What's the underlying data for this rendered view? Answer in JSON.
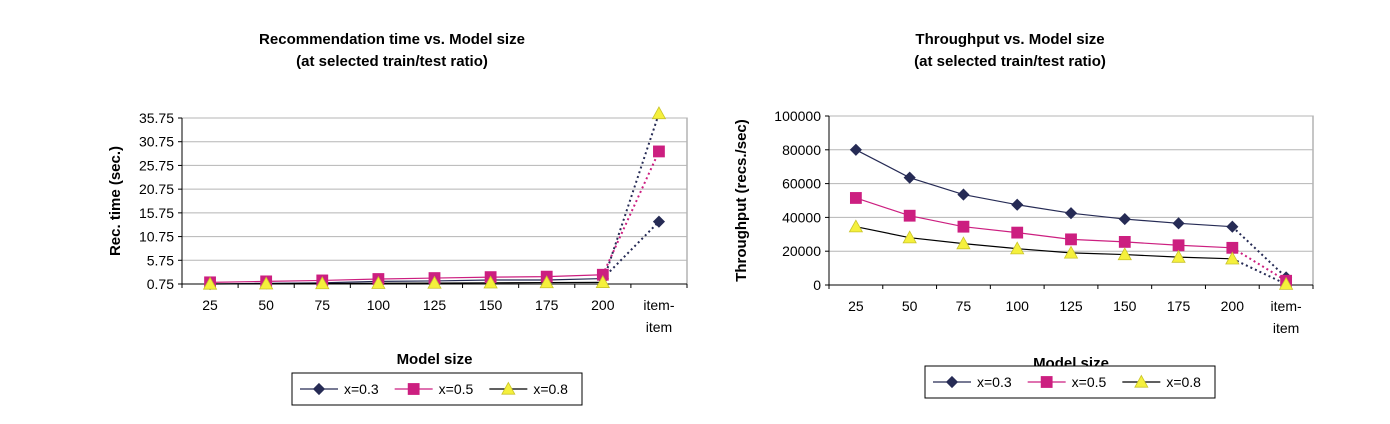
{
  "chart_data": [
    {
      "type": "line",
      "title": "Recommendation time vs. Model size",
      "subtitle": "(at selected train/test ratio)",
      "xlabel": "Model size",
      "ylabel": "Rec. time (sec.)",
      "categories": [
        "25",
        "50",
        "75",
        "100",
        "125",
        "150",
        "175",
        "200",
        "item-item"
      ],
      "yticks": [
        "0.75",
        "5.75",
        "10.75",
        "15.75",
        "20.75",
        "25.75",
        "30.75",
        "35.75"
      ],
      "ylim": [
        0.75,
        35.75
      ],
      "grid": true,
      "legend_position": "bottom",
      "series": [
        {
          "name": "x=0.3",
          "marker": "diamond",
          "color": "#262b55",
          "values": [
            0.75,
            0.9,
            1.0,
            1.3,
            1.4,
            1.6,
            1.6,
            1.9,
            13.9
          ]
        },
        {
          "name": "x=0.5",
          "marker": "square",
          "color": "#cc1f80",
          "values": [
            1.1,
            1.3,
            1.5,
            1.8,
            2.0,
            2.2,
            2.3,
            2.7,
            28.7
          ]
        },
        {
          "name": "x=0.8",
          "marker": "triangle",
          "color": "#f5f03c",
          "values": [
            0.75,
            0.8,
            0.85,
            0.9,
            0.95,
            1.0,
            1.05,
            1.1,
            36.7
          ]
        }
      ]
    },
    {
      "type": "line",
      "title": "Throughput vs. Model size",
      "subtitle": "(at selected train/test ratio)",
      "xlabel": "Model size",
      "ylabel": "Throughput (recs./sec)",
      "categories": [
        "25",
        "50",
        "75",
        "100",
        "125",
        "150",
        "175",
        "200",
        "item-item"
      ],
      "yticks": [
        "0",
        "20000",
        "40000",
        "60000",
        "80000",
        "100000"
      ],
      "ylim": [
        0,
        100000
      ],
      "grid": true,
      "legend_position": "bottom",
      "series": [
        {
          "name": "x=0.3",
          "marker": "diamond",
          "color": "#262b55",
          "values": [
            80000,
            63500,
            53500,
            47500,
            42500,
            39000,
            36500,
            34500,
            4500
          ]
        },
        {
          "name": "x=0.5",
          "marker": "square",
          "color": "#cc1f80",
          "values": [
            51500,
            41000,
            34500,
            31000,
            27000,
            25500,
            23500,
            22000,
            2500
          ]
        },
        {
          "name": "x=0.8",
          "marker": "triangle",
          "color": "#f5f03c",
          "values": [
            34500,
            28000,
            24500,
            21500,
            19000,
            18000,
            16500,
            15500,
            500
          ]
        }
      ]
    }
  ]
}
